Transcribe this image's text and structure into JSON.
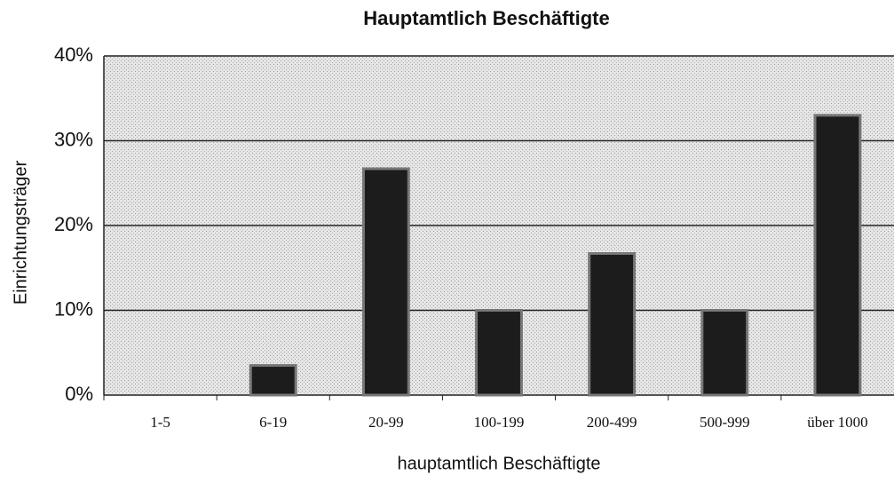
{
  "chart_data": {
    "type": "bar",
    "title": "Hauptamtlich Beschäftigte",
    "y_label": "Einrichtungsträger",
    "x_label": "hauptamtlich Beschäftigte",
    "categories": [
      "1-5",
      "6-19",
      "20-99",
      "100-199",
      "200-499",
      "500-999",
      "über 1000"
    ],
    "values": [
      0,
      3.5,
      26.7,
      10,
      16.7,
      10,
      33
    ],
    "color": "#1c1c1c",
    "ylim": [
      0,
      40
    ],
    "yticks": [
      {
        "value": 0,
        "label": "0%"
      },
      {
        "value": 10,
        "label": "10%"
      },
      {
        "value": 20,
        "label": "20%"
      },
      {
        "value": 30,
        "label": "30%"
      },
      {
        "value": 40,
        "label": "40%"
      }
    ],
    "grid": true
  }
}
